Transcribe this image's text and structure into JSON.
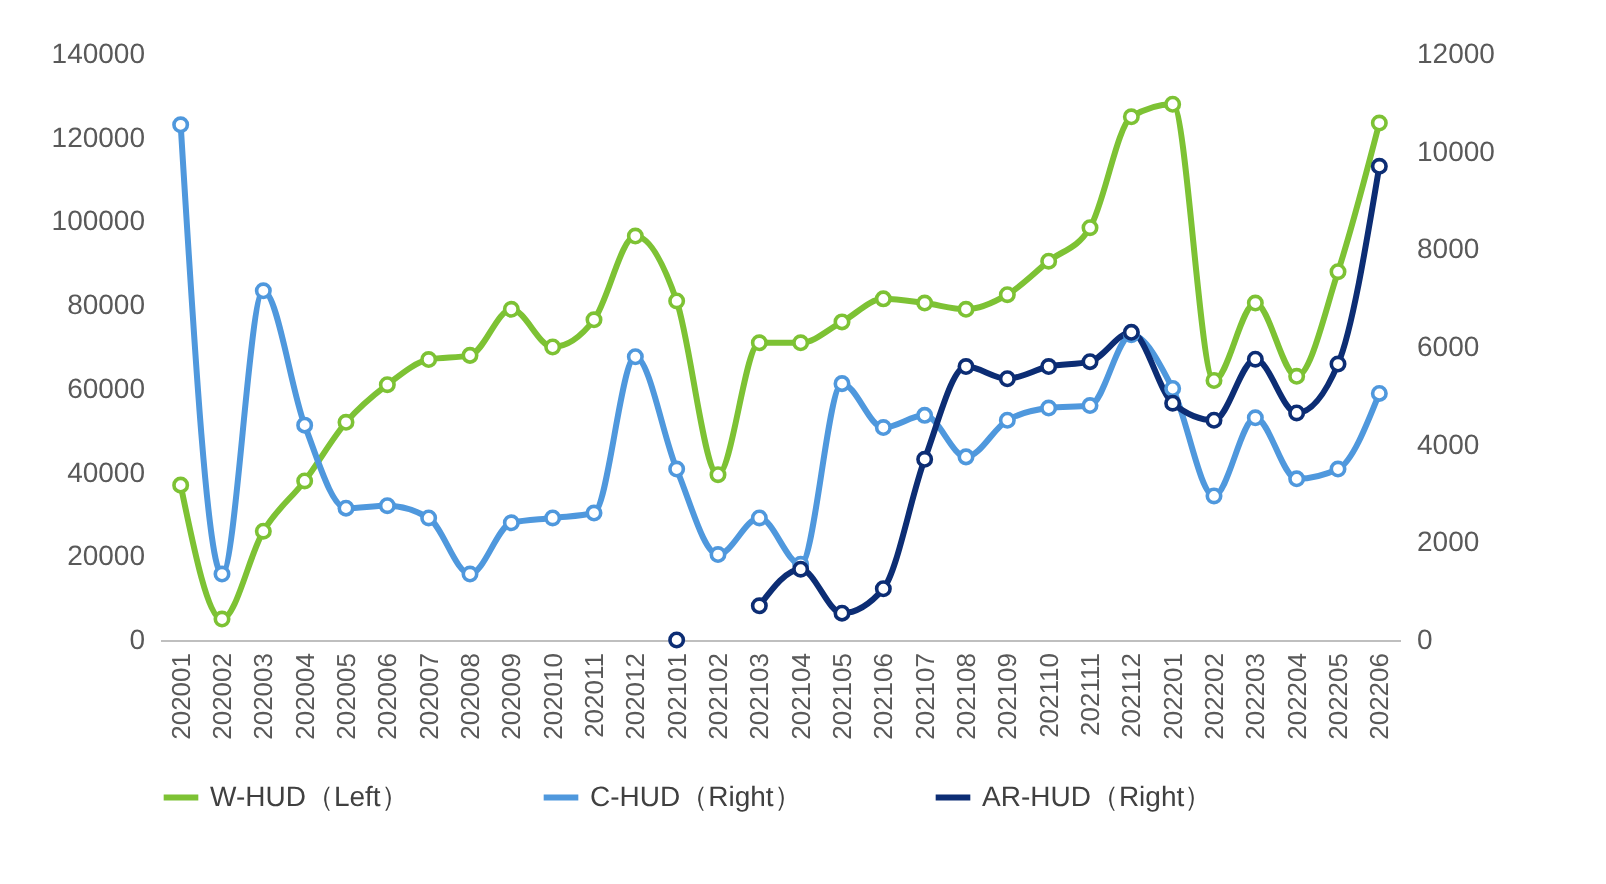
{
  "chart_data": {
    "type": "line",
    "categories": [
      "202001",
      "202002",
      "202003",
      "202004",
      "202005",
      "202006",
      "202007",
      "202008",
      "202009",
      "202010",
      "202011",
      "202012",
      "202101",
      "202102",
      "202103",
      "202104",
      "202105",
      "202106",
      "202107",
      "202108",
      "202109",
      "202110",
      "202111",
      "202112",
      "202201",
      "202202",
      "202203",
      "202204",
      "202205",
      "202206"
    ],
    "series": [
      {
        "name": "W-HUD（Left）",
        "color": "#7dc234",
        "axis": "y",
        "values": [
          37000,
          5000,
          26000,
          38000,
          52000,
          61000,
          67000,
          68000,
          79000,
          70000,
          76500,
          96500,
          81000,
          39500,
          71000,
          71000,
          76000,
          81500,
          80500,
          79000,
          82500,
          90500,
          98500,
          125000,
          128000,
          62000,
          80500,
          63000,
          88000,
          123500
        ]
      },
      {
        "name": "C-HUD（Right）",
        "color": "#4f98dd",
        "axis": "y2",
        "values": [
          10550,
          1350,
          7150,
          4400,
          2700,
          2750,
          2500,
          1350,
          2400,
          2500,
          2600,
          5800,
          3500,
          1750,
          2500,
          1550,
          5250,
          4350,
          4600,
          3750,
          4500,
          4750,
          4800,
          6250,
          5150,
          2950,
          4550,
          3300,
          3500,
          5050
        ]
      },
      {
        "name": "AR-HUD（Right）",
        "color": "#0c2d74",
        "axis": "y2",
        "values": [
          null,
          null,
          null,
          null,
          null,
          null,
          null,
          null,
          null,
          null,
          null,
          null,
          0,
          null,
          700,
          1450,
          550,
          1050,
          3700,
          5600,
          5350,
          5600,
          5700,
          6300,
          4850,
          4500,
          5750,
          4650,
          5650,
          9700
        ]
      }
    ],
    "ylim": [
      0,
      140000
    ],
    "yticks": [
      0,
      20000,
      40000,
      60000,
      80000,
      100000,
      120000,
      140000
    ],
    "y2lim": [
      0,
      12000
    ],
    "y2ticks": [
      0,
      2000,
      4000,
      6000,
      8000,
      10000,
      12000
    ],
    "marker": "circle",
    "line_style": "solid",
    "grid": false,
    "legend": "bottom"
  }
}
